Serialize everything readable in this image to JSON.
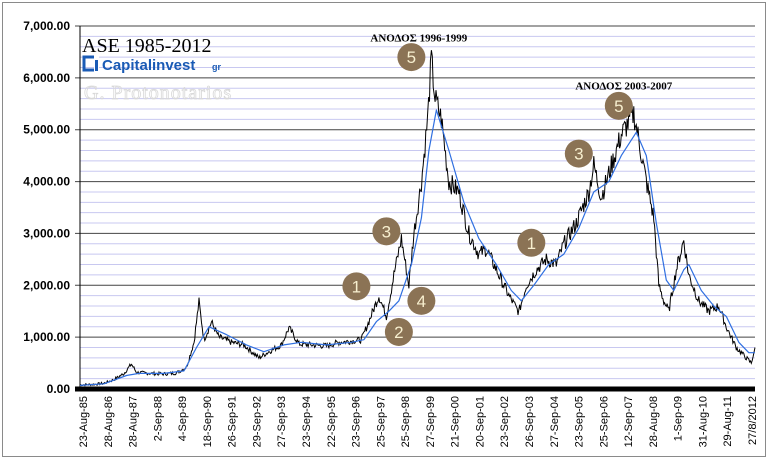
{
  "chart_data": {
    "type": "line",
    "title": "ASE 1985-2012",
    "brand": {
      "name": "Capitalinvest",
      "suffix": "gr",
      "color": "#1a5bb5"
    },
    "watermark": "G. Protonotarios",
    "ylim": [
      0,
      7000
    ],
    "y_major_step": 1000,
    "y_minor_step": 200,
    "y_tick_labels": [
      "0.00",
      "1,000.00",
      "2,000.00",
      "3,000.00",
      "4,000.00",
      "5,000.00",
      "6,000.00",
      "7,000.00"
    ],
    "x_tick_labels": [
      "23-Aug-85",
      "28-Aug-86",
      "28-Aug-87",
      "2-Sep-88",
      "4-Sep-89",
      "18-Sep-90",
      "26-Sep-91",
      "29-Sep-92",
      "27-Sep-93",
      "23-Sep-94",
      "22-Sep-95",
      "23-Sep-96",
      "25-Sep-97",
      "25-Sep-98",
      "27-Sep-99",
      "21-Sep-00",
      "20-Sep-01",
      "23-Sep-02",
      "26-Sep-03",
      "27-Sep-04",
      "23-Sep-05",
      "25-Sep-06",
      "12-Sep-07",
      "28-Aug-08",
      "1-Sep-09",
      "31-Aug-10",
      "29-Aug-11",
      "27/8/2012"
    ],
    "xlim": [
      1985.64,
      2012.65
    ],
    "grid": true,
    "colors": {
      "index": "#000000",
      "moving_average": "#2f6fe0",
      "major_grid": "#000000",
      "minor_grid": "#c8c8f0",
      "badge": "#8b7355"
    },
    "series": [
      {
        "key": "index",
        "points": [
          [
            1985.64,
            80
          ],
          [
            1986.2,
            90
          ],
          [
            1986.6,
            110
          ],
          [
            1987.0,
            180
          ],
          [
            1987.4,
            300
          ],
          [
            1987.7,
            480
          ],
          [
            1987.9,
            320
          ],
          [
            1988.5,
            300
          ],
          [
            1989.0,
            290
          ],
          [
            1989.5,
            310
          ],
          [
            1989.9,
            420
          ],
          [
            1990.2,
            900
          ],
          [
            1990.4,
            1680
          ],
          [
            1990.6,
            950
          ],
          [
            1990.9,
            1290
          ],
          [
            1991.2,
            1000
          ],
          [
            1991.7,
            900
          ],
          [
            1992.2,
            850
          ],
          [
            1992.8,
            600
          ],
          [
            1993.2,
            720
          ],
          [
            1993.7,
            850
          ],
          [
            1994.0,
            1180
          ],
          [
            1994.4,
            870
          ],
          [
            1994.9,
            850
          ],
          [
            1995.5,
            830
          ],
          [
            1996.0,
            900
          ],
          [
            1996.6,
            930
          ],
          [
            1996.9,
            950
          ],
          [
            1997.2,
            1300
          ],
          [
            1997.6,
            1800
          ],
          [
            1997.9,
            1400
          ],
          [
            1998.2,
            2200
          ],
          [
            1998.5,
            2900
          ],
          [
            1998.8,
            2000
          ],
          [
            1999.0,
            3000
          ],
          [
            1999.3,
            4000
          ],
          [
            1999.55,
            5200
          ],
          [
            1999.7,
            6350
          ],
          [
            1999.85,
            5600
          ],
          [
            2000.1,
            5200
          ],
          [
            2000.4,
            4000
          ],
          [
            2000.8,
            3800
          ],
          [
            2001.2,
            3000
          ],
          [
            2001.6,
            2600
          ],
          [
            2001.9,
            2700
          ],
          [
            2002.3,
            2300
          ],
          [
            2002.8,
            1800
          ],
          [
            2003.2,
            1480
          ],
          [
            2003.5,
            2000
          ],
          [
            2003.9,
            2300
          ],
          [
            2004.3,
            2500
          ],
          [
            2004.7,
            2400
          ],
          [
            2005.0,
            2800
          ],
          [
            2005.5,
            3200
          ],
          [
            2006.0,
            3800
          ],
          [
            2006.2,
            4320
          ],
          [
            2006.5,
            3700
          ],
          [
            2006.9,
            4300
          ],
          [
            2007.3,
            4900
          ],
          [
            2007.8,
            5320
          ],
          [
            2008.0,
            4800
          ],
          [
            2008.3,
            4000
          ],
          [
            2008.6,
            3300
          ],
          [
            2008.8,
            2000
          ],
          [
            2009.0,
            1700
          ],
          [
            2009.2,
            1500
          ],
          [
            2009.5,
            2300
          ],
          [
            2009.8,
            2870
          ],
          [
            2010.0,
            2200
          ],
          [
            2010.4,
            1700
          ],
          [
            2010.8,
            1500
          ],
          [
            2011.2,
            1600
          ],
          [
            2011.5,
            1200
          ],
          [
            2011.9,
            800
          ],
          [
            2012.3,
            600
          ],
          [
            2012.5,
            500
          ],
          [
            2012.65,
            800
          ]
        ]
      },
      {
        "key": "moving_average",
        "points": [
          [
            1985.64,
            70
          ],
          [
            1986.6,
            100
          ],
          [
            1987.5,
            260
          ],
          [
            1988.0,
            300
          ],
          [
            1989.0,
            300
          ],
          [
            1989.8,
            350
          ],
          [
            1990.3,
            800
          ],
          [
            1990.8,
            1200
          ],
          [
            1991.5,
            1050
          ],
          [
            1992.3,
            850
          ],
          [
            1993.0,
            720
          ],
          [
            1993.8,
            850
          ],
          [
            1994.5,
            900
          ],
          [
            1995.5,
            850
          ],
          [
            1996.5,
            900
          ],
          [
            1997.0,
            950
          ],
          [
            1997.5,
            1300
          ],
          [
            1998.0,
            1500
          ],
          [
            1998.4,
            1700
          ],
          [
            1998.9,
            2400
          ],
          [
            1999.3,
            3300
          ],
          [
            1999.6,
            4600
          ],
          [
            1999.9,
            5380
          ],
          [
            2000.4,
            4600
          ],
          [
            2001.0,
            3600
          ],
          [
            2001.6,
            2900
          ],
          [
            2002.3,
            2400
          ],
          [
            2002.9,
            1900
          ],
          [
            2003.3,
            1700
          ],
          [
            2003.8,
            2000
          ],
          [
            2004.4,
            2400
          ],
          [
            2005.0,
            2600
          ],
          [
            2005.6,
            3100
          ],
          [
            2006.2,
            3800
          ],
          [
            2006.8,
            4000
          ],
          [
            2007.3,
            4500
          ],
          [
            2007.9,
            4950
          ],
          [
            2008.3,
            4500
          ],
          [
            2008.7,
            3200
          ],
          [
            2009.1,
            2100
          ],
          [
            2009.4,
            1900
          ],
          [
            2009.8,
            2300
          ],
          [
            2010.0,
            2400
          ],
          [
            2010.5,
            1900
          ],
          [
            2011.0,
            1600
          ],
          [
            2011.5,
            1400
          ],
          [
            2012.0,
            900
          ],
          [
            2012.4,
            700
          ],
          [
            2012.65,
            700
          ]
        ]
      }
    ],
    "annotations": [
      {
        "text": "ΑΝΟΔΟΣ 1996-1999",
        "x": 1999.2,
        "y": 6700
      },
      {
        "text": "ΑΝΟΔΟΣ 2003-2007",
        "x": 2007.4,
        "y": 5780
      }
    ],
    "wave_badges": [
      {
        "label": "1",
        "x": 1996.7,
        "y": 1980
      },
      {
        "label": "2",
        "x": 1998.4,
        "y": 1100
      },
      {
        "label": "3",
        "x": 1997.9,
        "y": 3040
      },
      {
        "label": "4",
        "x": 1999.3,
        "y": 1700
      },
      {
        "label": "5",
        "x": 1998.9,
        "y": 6400
      },
      {
        "label": "1",
        "x": 2003.7,
        "y": 2820
      },
      {
        "label": "3",
        "x": 2005.6,
        "y": 4540
      },
      {
        "label": "5",
        "x": 2007.2,
        "y": 5460
      }
    ]
  }
}
